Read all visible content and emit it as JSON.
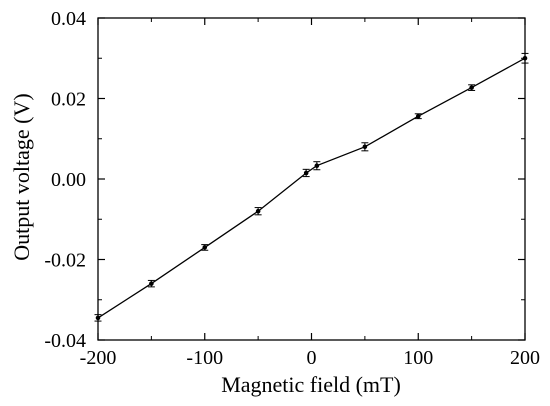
{
  "chart_data": {
    "type": "line",
    "title": "",
    "xlabel": "Magnetic field (mT)",
    "ylabel": "Output voltage (V)",
    "xlim": [
      -200,
      200
    ],
    "ylim": [
      -0.04,
      0.04
    ],
    "xticks": [
      -200,
      -100,
      0,
      100,
      200
    ],
    "xtick_labels": [
      "-200",
      "-100",
      "0",
      "100",
      "200"
    ],
    "yticks": [
      -0.04,
      -0.02,
      0.0,
      0.02,
      0.04
    ],
    "ytick_labels": [
      "-0.04",
      "-0.02",
      "0.00",
      "0.02",
      "0.04"
    ],
    "grid": false,
    "series": [
      {
        "color": "#000000",
        "x": [
          -200,
          -150,
          -100,
          -50,
          -5,
          5,
          50,
          100,
          150,
          200
        ],
        "y": [
          -0.0345,
          -0.026,
          -0.017,
          -0.008,
          0.0015,
          0.0033,
          0.008,
          0.0156,
          0.0227,
          0.03
        ],
        "error": [
          0.0008,
          0.0008,
          0.0007,
          0.0009,
          0.0009,
          0.001,
          0.001,
          0.0006,
          0.0007,
          0.0012
        ]
      }
    ]
  }
}
